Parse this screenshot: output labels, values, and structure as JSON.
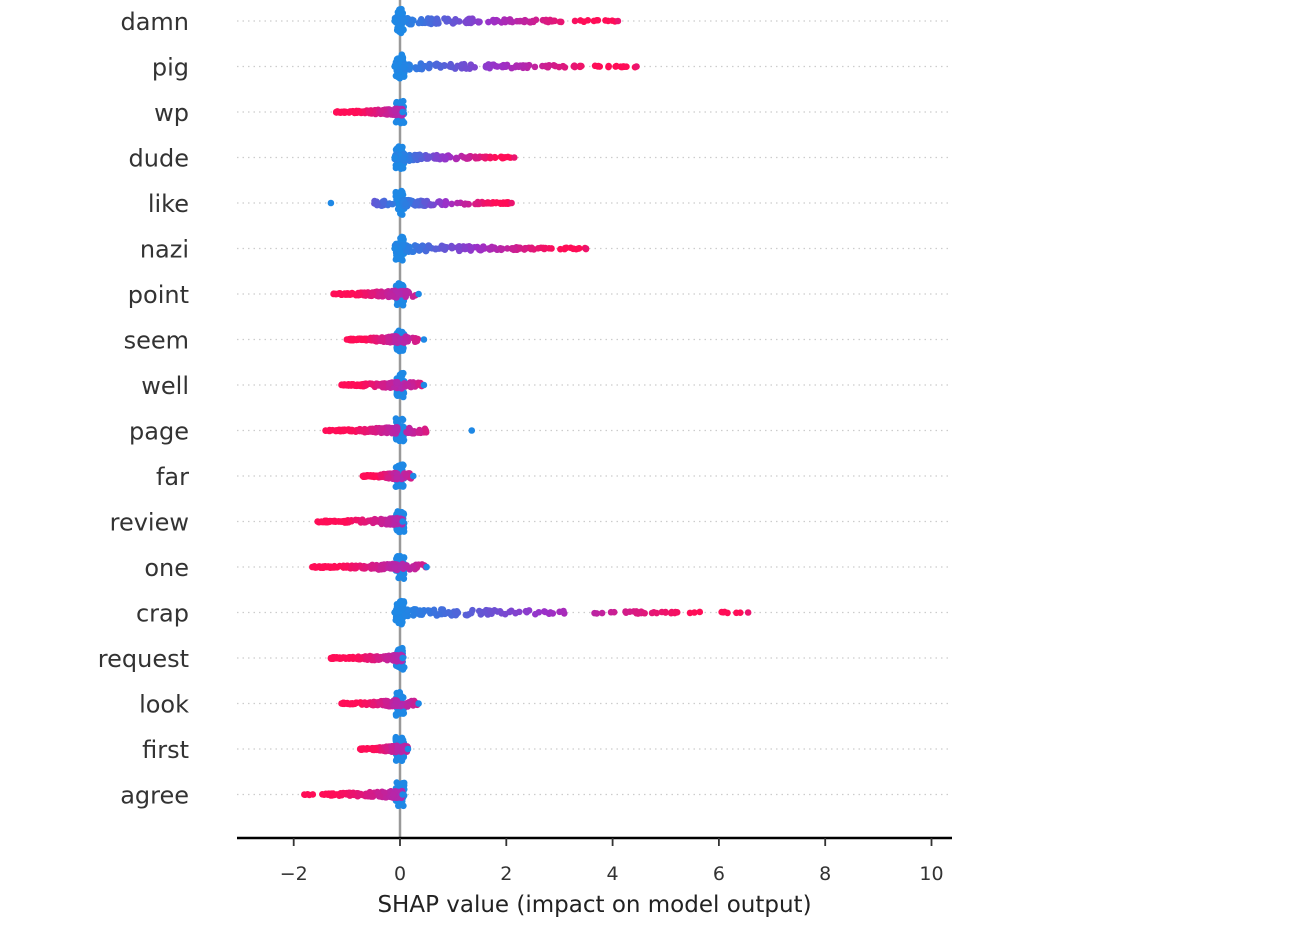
{
  "chart_data": {
    "type": "scatter",
    "subtype": "beeswarm",
    "xlabel": "SHAP value (impact on model output)",
    "ylabel": "",
    "xlim": [
      -3,
      10.5
    ],
    "xticks": [
      -2,
      0,
      2,
      4,
      6,
      8,
      10
    ],
    "xtick_labels": [
      "−2",
      "0",
      "2",
      "4",
      "6",
      "8",
      "10"
    ],
    "grid": false,
    "legend": "none",
    "colors": {
      "low_feature_value": "#1E88E5",
      "high_feature_value": "#FF0D57",
      "zero_line": "#999999",
      "row_guides": "#cccccc",
      "axis": "#000000"
    },
    "features": [
      {
        "name": "damn",
        "min": -0.1,
        "max": 4.1
      },
      {
        "name": "pig",
        "min": -0.1,
        "max": 4.45
      },
      {
        "name": "wp",
        "min": -1.2,
        "max": 0.05
      },
      {
        "name": "dude",
        "min": -0.1,
        "max": 2.15
      },
      {
        "name": "like",
        "min": -1.3,
        "max": 2.1
      },
      {
        "name": "nazi",
        "min": -0.1,
        "max": 3.5
      },
      {
        "name": "point",
        "min": -1.25,
        "max": 0.35
      },
      {
        "name": "seem",
        "min": -1.0,
        "max": 0.45
      },
      {
        "name": "well",
        "min": -1.1,
        "max": 0.45
      },
      {
        "name": "page",
        "min": -1.4,
        "max": 1.35
      },
      {
        "name": "far",
        "min": -0.7,
        "max": 0.25
      },
      {
        "name": "review",
        "min": -1.55,
        "max": -0.2
      },
      {
        "name": "one",
        "min": -1.65,
        "max": 0.5
      },
      {
        "name": "crap",
        "min": -0.1,
        "max": 6.55
      },
      {
        "name": "request",
        "min": -1.3,
        "max": -0.05
      },
      {
        "name": "look",
        "min": -1.1,
        "max": 0.35
      },
      {
        "name": "first",
        "min": -0.75,
        "max": 0.15
      },
      {
        "name": "agree",
        "min": -1.8,
        "max": -0.05
      }
    ]
  }
}
